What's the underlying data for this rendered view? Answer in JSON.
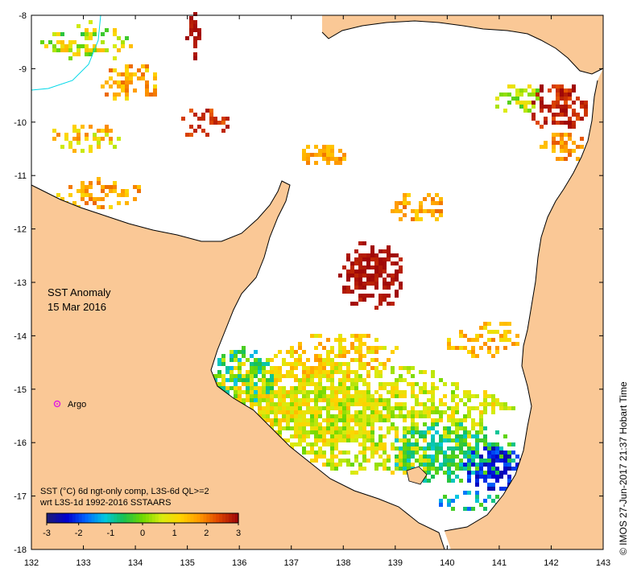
{
  "map": {
    "title_line1": "SST Anomaly",
    "title_line2": "15 Mar 2016",
    "argo_label": "Argo",
    "note_line1": "SST (°C) 6d ngt-only comp, L3S-6d QL>=2",
    "note_line2": "wrt L3S-1d 1992-2016 SSTAARS",
    "credit": "©  IMOS 27-Jun-2017 21:37 Hobart Time",
    "land_color": "#fac896",
    "coast_color": "#000000",
    "argo_color": "#e020e0"
  },
  "axes": {
    "x_ticks": [
      "132",
      "133",
      "134",
      "135",
      "136",
      "137",
      "138",
      "139",
      "140",
      "141",
      "142",
      "143"
    ],
    "y_ticks": [
      "-8",
      "-9",
      "-10",
      "-11",
      "-12",
      "-13",
      "-14",
      "-15",
      "-16",
      "-17",
      "-18"
    ]
  },
  "colorbar": {
    "labels": [
      "-3",
      "-2",
      "-1",
      "0",
      "1",
      "2",
      "3"
    ],
    "min": -3,
    "max": 3,
    "colors": [
      "#1b1b7a",
      "#0000d0",
      "#0066ff",
      "#00c8e0",
      "#18c050",
      "#70d800",
      "#d8ec10",
      "#ffd400",
      "#ff9a00",
      "#e04800",
      "#a00808"
    ]
  }
}
